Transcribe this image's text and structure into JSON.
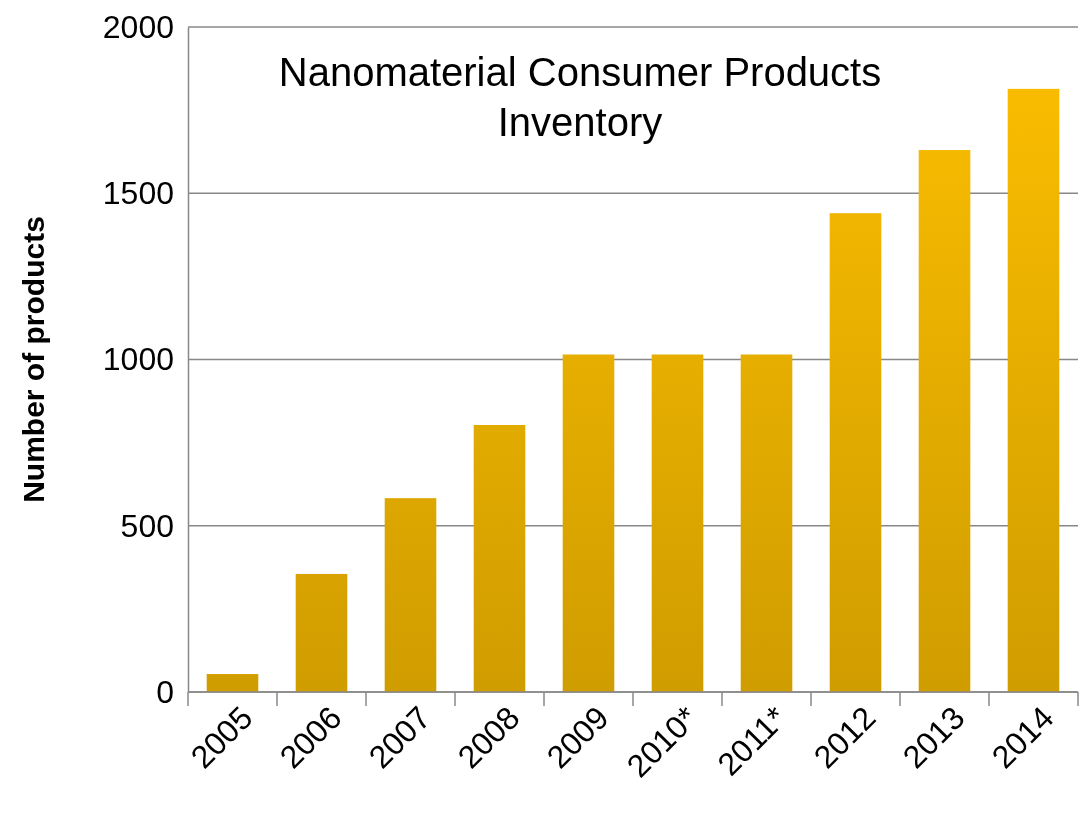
{
  "chart_data": {
    "type": "bar",
    "title": "Nanomaterial Consumer Products Inventory",
    "ylabel": "Number of products",
    "categories": [
      "2005",
      "2006",
      "2007",
      "2008",
      "2009",
      "2010*",
      "2011*",
      "2012",
      "2013",
      "2014"
    ],
    "values": [
      54,
      355,
      583,
      803,
      1015,
      1015,
      1015,
      1440,
      1630,
      1814
    ],
    "color": "#fdbf00",
    "ylim": [
      0,
      2000
    ],
    "yticks": [
      0,
      500,
      1000,
      1500,
      2000
    ],
    "grid": "y"
  }
}
